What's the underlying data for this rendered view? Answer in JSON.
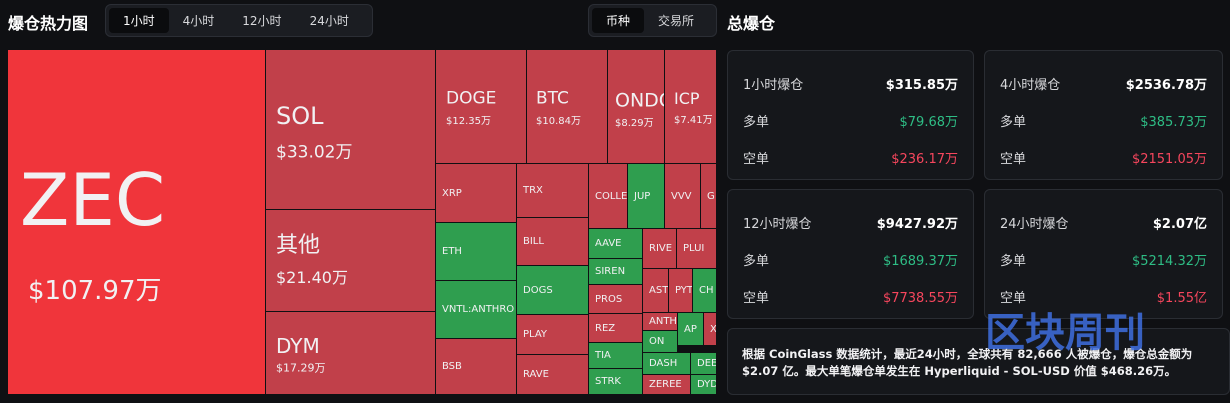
{
  "header": {
    "title": "爆仓热力图",
    "time_tabs": [
      "1小时",
      "4小时",
      "12小时",
      "24小时"
    ],
    "group_tabs": [
      "币种",
      "交易所"
    ],
    "summary_title": "总爆仓"
  },
  "treemap": {
    "tiles": [
      {
        "label": "ZEC",
        "value": "$107.97万"
      },
      {
        "label": "SOL",
        "value": "$33.02万"
      },
      {
        "label": "其他",
        "value": "$21.40万"
      },
      {
        "label": "DYM",
        "value": "$17.29万"
      },
      {
        "label": "DOGE",
        "value": "$12.35万"
      },
      {
        "label": "BTC",
        "value": "$10.84万"
      },
      {
        "label": "ONDO",
        "value": "$8.29万"
      },
      {
        "label": "ICP",
        "value": "$7.41万"
      },
      {
        "label": "XRP"
      },
      {
        "label": "ETH"
      },
      {
        "label": "VNTL:ANTHRO"
      },
      {
        "label": "BSB"
      },
      {
        "label": "TRX"
      },
      {
        "label": "BILL"
      },
      {
        "label": "DOGS"
      },
      {
        "label": "PLAY"
      },
      {
        "label": "RAVE"
      },
      {
        "label": "COLLE"
      },
      {
        "label": "JUP"
      },
      {
        "label": "VVV"
      },
      {
        "label": "G"
      },
      {
        "label": "AAVE"
      },
      {
        "label": "SIREN"
      },
      {
        "label": "PROS"
      },
      {
        "label": "REZ"
      },
      {
        "label": "TIA"
      },
      {
        "label": "STRK"
      },
      {
        "label": "RIVE"
      },
      {
        "label": "PLUI"
      },
      {
        "label": "AST"
      },
      {
        "label": "PYT"
      },
      {
        "label": "CH"
      },
      {
        "label": "ANTHI"
      },
      {
        "label": "AP"
      },
      {
        "label": "X"
      },
      {
        "label": "ON"
      },
      {
        "label": "DASH"
      },
      {
        "label": "DEEP"
      },
      {
        "label": "ZEREE"
      },
      {
        "label": "DYDX"
      }
    ]
  },
  "stats": {
    "cards": [
      {
        "title": "1小时爆仓",
        "total": "$315.85万",
        "rows": [
          {
            "label": "多单",
            "value": "$79.68万"
          },
          {
            "label": "空单",
            "value": "$236.17万"
          }
        ]
      },
      {
        "title": "4小时爆仓",
        "total": "$2536.78万",
        "rows": [
          {
            "label": "多单",
            "value": "$385.73万"
          },
          {
            "label": "空单",
            "value": "$2151.05万"
          }
        ]
      },
      {
        "title": "12小时爆仓",
        "total": "$9427.92万",
        "rows": [
          {
            "label": "多单",
            "value": "$1689.37万"
          },
          {
            "label": "空单",
            "value": "$7738.55万"
          }
        ]
      },
      {
        "title": "24小时爆仓",
        "total": "$2.07亿",
        "rows": [
          {
            "label": "多单",
            "value": "$5214.32万"
          },
          {
            "label": "空单",
            "value": "$1.55亿"
          }
        ]
      }
    ],
    "note": "根据 CoinGlass 数据统计，最近24小时，全球共有 82,666 人被爆仓，爆仓总金额为 $2.07 亿。最大单笔爆仓单发生在 Hyperliquid - SOL-USD 价值 $468.26万。"
  },
  "watermark": "区块周刊"
}
